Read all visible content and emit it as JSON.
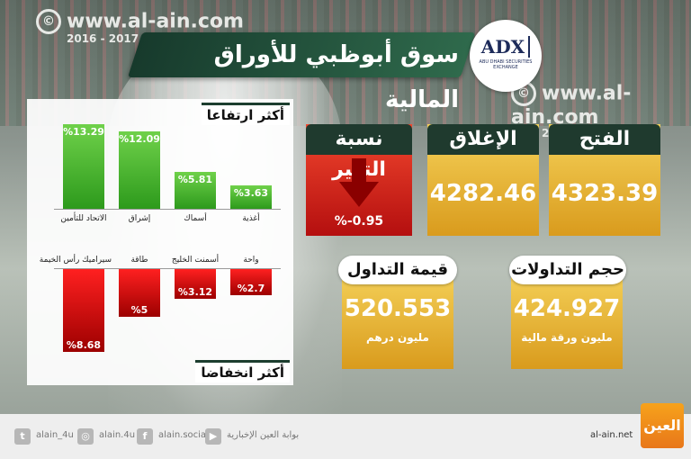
{
  "brand": {
    "url": "www.al-ain.com",
    "years": "2016 - 2017",
    "copyright_symbol": "©"
  },
  "title": "سوق أبوظبي للأوراق المالية",
  "logo": {
    "abbr": "ADX",
    "text": "ABU DHABI SECURITIES EXCHANGE"
  },
  "gainers": {
    "label": "أكثر ارتفاعا",
    "items": [
      {
        "name": "الاتحاد للتأمين",
        "value": "%13.29",
        "pct": 13.29
      },
      {
        "name": "إشراق",
        "value": "%12.09",
        "pct": 12.09
      },
      {
        "name": "أسماك",
        "value": "%5.81",
        "pct": 5.81
      },
      {
        "name": "أغذية",
        "value": "%3.63",
        "pct": 3.63
      }
    ]
  },
  "losers": {
    "label": "أكثر انخفاضا",
    "items": [
      {
        "name": "سيراميك رأس الخيمة",
        "value": "%8.68",
        "pct": 8.68
      },
      {
        "name": "طاقة",
        "value": "%5",
        "pct": 5
      },
      {
        "name": "أسمنت الخليج",
        "value": "%3.12",
        "pct": 3.12
      },
      {
        "name": "واحة",
        "value": "%2.7",
        "pct": 2.7
      }
    ]
  },
  "stats": {
    "open": {
      "label": "الفتح",
      "value": "4323.39"
    },
    "close": {
      "label": "الإغلاق",
      "value": "4282.46"
    },
    "change": {
      "label": "نسبة التغير",
      "value": "%-0.95"
    },
    "volume": {
      "label": "حجم التداولات",
      "value": "424.927",
      "unit": "مليون ورقة مالية"
    },
    "turnover": {
      "label": "قيمة التداول",
      "value": "520.553",
      "unit": "مليون درهم"
    }
  },
  "footer": {
    "twitter": "alain_4u",
    "instagram": "alain.4u",
    "facebook": "alain.social",
    "youtube": "بوابة العين الإخبارية",
    "site": "al-ain.net",
    "logo_text": "العين"
  },
  "colors": {
    "green": "#2d9a1c",
    "red": "#c40000",
    "gold": "#e6b02d",
    "dark_green": "#1f3a2e"
  }
}
